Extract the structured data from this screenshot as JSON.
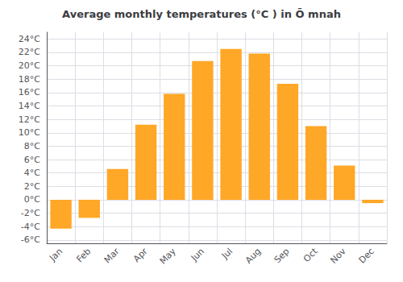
{
  "chart_data": {
    "type": "bar",
    "title": "Average monthly temperatures (°C ) in Ō mnah",
    "categories": [
      "Jan",
      "Feb",
      "Mar",
      "Apr",
      "May",
      "Jun",
      "Jul",
      "Aug",
      "Sep",
      "Oct",
      "Nov",
      "Dec"
    ],
    "values": [
      -4.3,
      -2.7,
      4.6,
      11.2,
      15.8,
      20.7,
      22.5,
      21.8,
      17.3,
      11.0,
      5.1,
      -0.5
    ],
    "color": "#FFA726",
    "ylim": [
      -6.5,
      25
    ],
    "yticks": [
      {
        "value": -6,
        "label": "-6°C"
      },
      {
        "value": -4,
        "label": "-4°C"
      },
      {
        "value": -2,
        "label": "-2°C"
      },
      {
        "value": 0,
        "label": "0°C"
      },
      {
        "value": 2,
        "label": "2°C"
      },
      {
        "value": 4,
        "label": "4°C"
      },
      {
        "value": 6,
        "label": "6°C"
      },
      {
        "value": 8,
        "label": "8°C"
      },
      {
        "value": 10,
        "label": "10°C"
      },
      {
        "value": 12,
        "label": "12°C"
      },
      {
        "value": 14,
        "label": "14°C"
      },
      {
        "value": 16,
        "label": "16°C"
      },
      {
        "value": 18,
        "label": "18°C"
      },
      {
        "value": 20,
        "label": "20°C"
      },
      {
        "value": 22,
        "label": "22°C"
      },
      {
        "value": 24,
        "label": "24°C"
      }
    ],
    "grid": true
  }
}
